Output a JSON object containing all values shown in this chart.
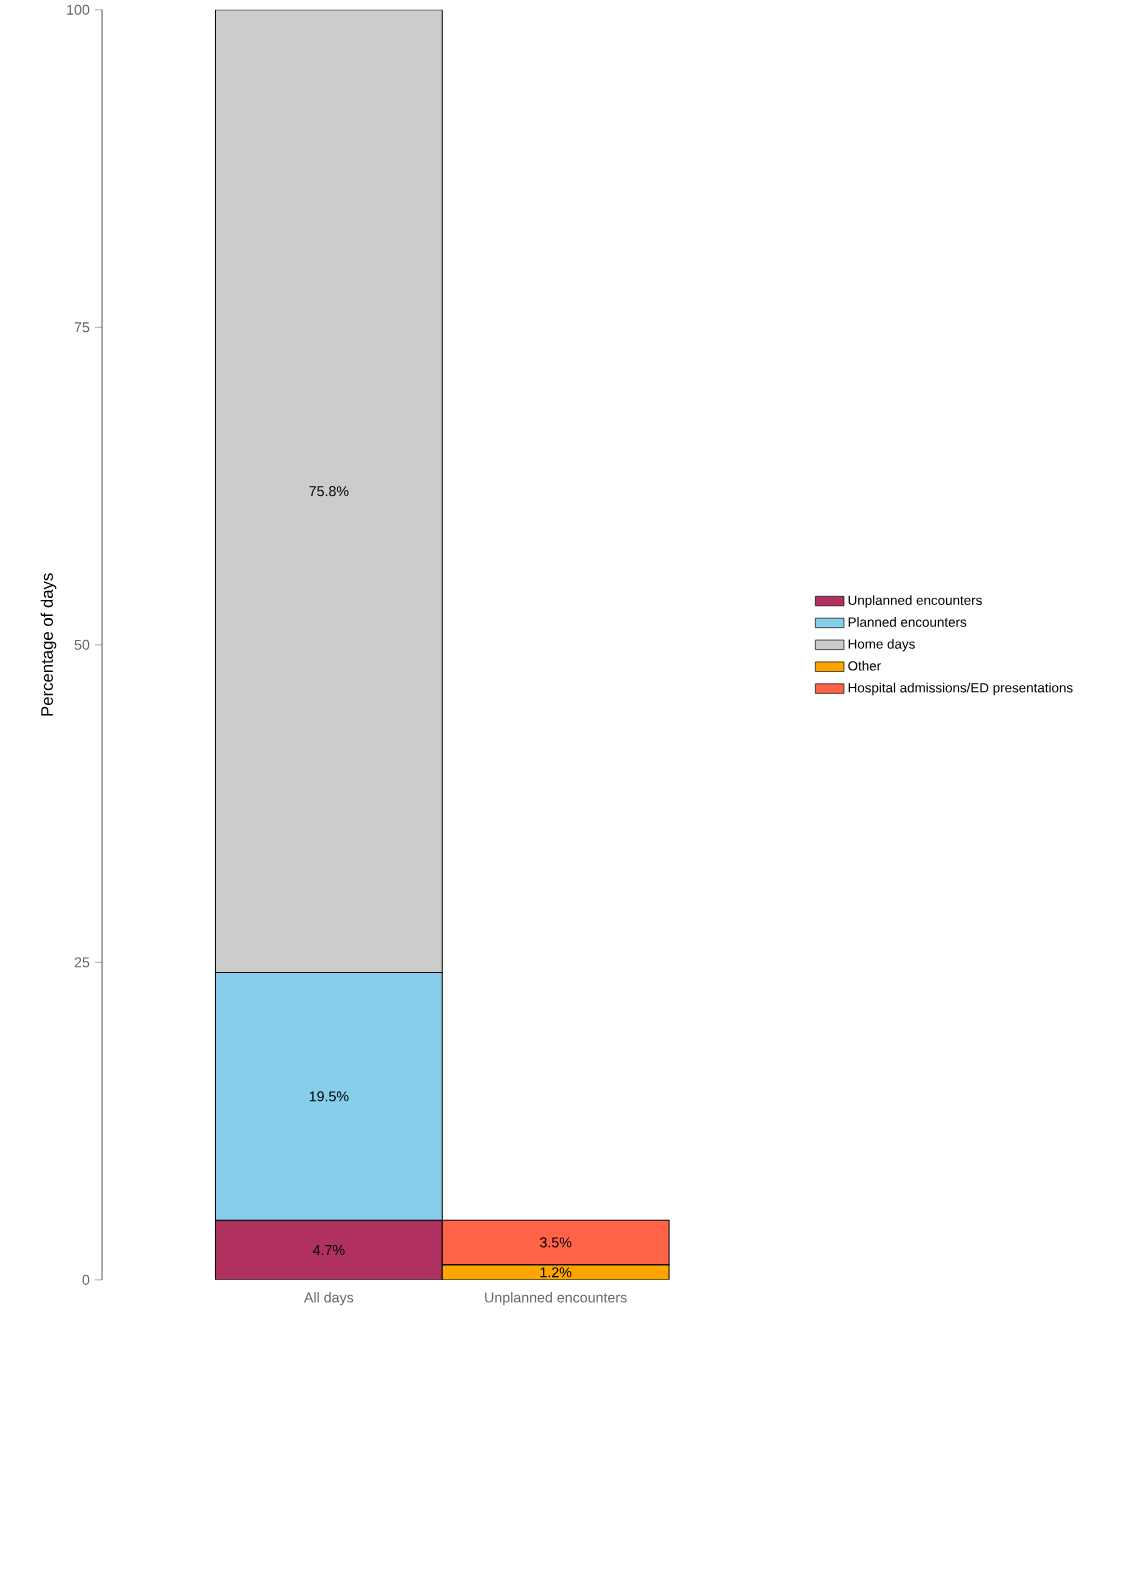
{
  "chart_data": {
    "type": "bar",
    "stacked": true,
    "ylabel": "Percentage of days",
    "categories": [
      "All days",
      "Unplanned encounters"
    ],
    "series": [
      {
        "name": "Unplanned encounters",
        "color": "#b03060",
        "values": [
          4.7,
          null
        ],
        "value_labels": [
          "4.7%",
          null
        ]
      },
      {
        "name": "Planned encounters",
        "color": "#87ceeb",
        "values": [
          19.5,
          null
        ],
        "value_labels": [
          "19.5%",
          null
        ]
      },
      {
        "name": "Home days",
        "color": "#cccccc",
        "values": [
          75.8,
          null
        ],
        "value_labels": [
          "75.8%",
          null
        ]
      },
      {
        "name": "Other",
        "color": "#ffa500",
        "values": [
          null,
          1.2
        ],
        "value_labels": [
          null,
          "1.2%"
        ]
      },
      {
        "name": "Hospital admissions/ED presentations",
        "color": "#ff6347",
        "values": [
          null,
          3.5
        ],
        "value_labels": [
          null,
          "3.5%"
        ]
      }
    ],
    "ylim": [
      0,
      100
    ],
    "yticks": [
      0,
      25,
      50,
      75,
      100
    ],
    "grid": false,
    "legend": "right"
  }
}
